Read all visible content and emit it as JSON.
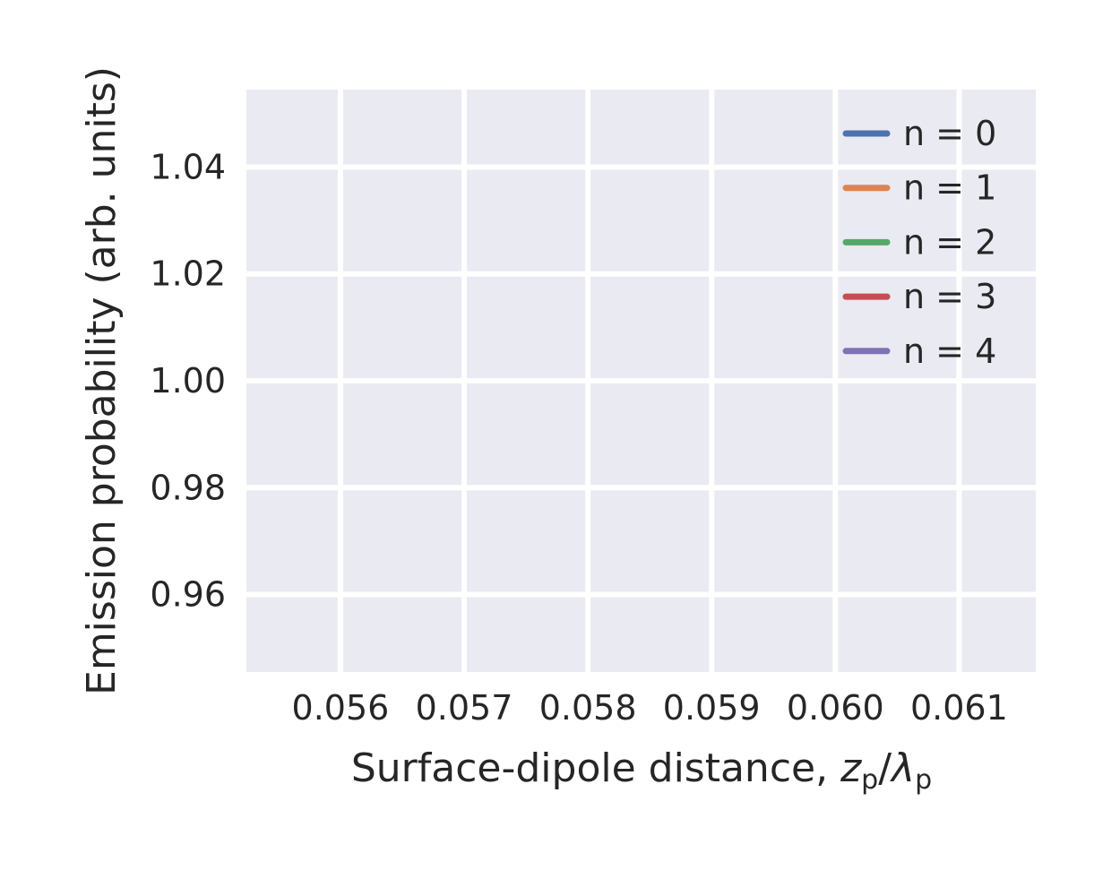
{
  "chart_data": {
    "type": "line",
    "title": "",
    "xlabel": "Surface-dipole distance, ",
    "xlabel_math": {
      "var1": "z",
      "sub1": "p",
      "slash": "/",
      "var2": "λ",
      "sub2": "p"
    },
    "ylabel": "Emission probability (arb. units)",
    "xlim": [
      0.05524,
      0.06162
    ],
    "ylim": [
      0.9455,
      1.0545
    ],
    "xticks": [
      0.056,
      0.057,
      0.058,
      0.059,
      0.06,
      0.061
    ],
    "xtick_labels": [
      "0.056",
      "0.057",
      "0.058",
      "0.059",
      "0.060",
      "0.061"
    ],
    "yticks": [
      0.96,
      0.98,
      1.0,
      1.02,
      1.04
    ],
    "ytick_labels": [
      "0.96",
      "0.98",
      "1.00",
      "1.02",
      "1.04"
    ],
    "grid": true,
    "legend_position": "upper right",
    "series": [
      {
        "name": "n = 0",
        "color": "#4c72b0",
        "x": [],
        "y": []
      },
      {
        "name": "n = 1",
        "color": "#dd8452",
        "x": [],
        "y": []
      },
      {
        "name": "n = 2",
        "color": "#55a868",
        "x": [],
        "y": []
      },
      {
        "name": "n = 3",
        "color": "#c44e52",
        "x": [],
        "y": []
      },
      {
        "name": "n = 4",
        "color": "#8172b3",
        "x": [],
        "y": []
      }
    ]
  }
}
